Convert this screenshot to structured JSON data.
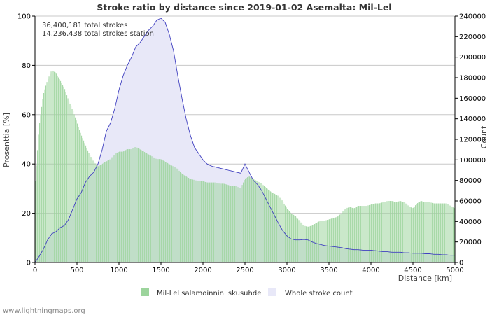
{
  "chart_data": {
    "type": "bar",
    "title": "Stroke ratio by distance since 2019-01-02 Asemalta: Mil-Lel",
    "xlabel": "Distance   [km]",
    "ylabel_left": "Prosenttia   [%]",
    "ylabel_right": "Count",
    "xlim": [
      0,
      5000
    ],
    "ylim_left": [
      0,
      100
    ],
    "ylim_right": [
      0,
      240000
    ],
    "x_ticks": [
      0,
      500,
      1000,
      1500,
      2000,
      2500,
      3000,
      3500,
      4000,
      4500,
      5000
    ],
    "y_left_ticks": [
      0,
      20,
      40,
      60,
      80,
      100
    ],
    "y_right_ticks": [
      0,
      20000,
      40000,
      60000,
      80000,
      100000,
      120000,
      140000,
      160000,
      180000,
      200000,
      220000,
      240000
    ],
    "grid": true,
    "annotations": [
      "36,400,181 total strokes",
      "14,236,438 total strokes station"
    ],
    "ratio_series": {
      "name": "Mil-Lel salamoinnin iskusuhde",
      "axis": "left",
      "color": "#9cd49c",
      "x": [
        0,
        50,
        100,
        150,
        200,
        250,
        300,
        350,
        400,
        450,
        500,
        550,
        600,
        650,
        700,
        750,
        800,
        850,
        900,
        950,
        1000,
        1050,
        1100,
        1150,
        1200,
        1250,
        1300,
        1350,
        1400,
        1450,
        1500,
        1550,
        1600,
        1650,
        1700,
        1750,
        1800,
        1850,
        1900,
        1950,
        2000,
        2050,
        2100,
        2150,
        2200,
        2250,
        2300,
        2350,
        2400,
        2450,
        2500,
        2550,
        2600,
        2650,
        2700,
        2750,
        2800,
        2850,
        2900,
        2950,
        3000,
        3050,
        3100,
        3150,
        3200,
        3250,
        3300,
        3350,
        3400,
        3450,
        3500,
        3550,
        3600,
        3650,
        3700,
        3750,
        3800,
        3850,
        3900,
        3950,
        4000,
        4050,
        4100,
        4150,
        4200,
        4250,
        4300,
        4350,
        4400,
        4450,
        4500,
        4550,
        4600,
        4650,
        4700,
        4750,
        4800,
        4850,
        4900,
        4950,
        5000
      ],
      "values": [
        30,
        55,
        68,
        74,
        78,
        77,
        74,
        71,
        66,
        62,
        57,
        52,
        48,
        44,
        41,
        39,
        40,
        41,
        42,
        44,
        45,
        45,
        46,
        46,
        47,
        46,
        45,
        44,
        43,
        42,
        42,
        41,
        40,
        39,
        38,
        36,
        35,
        34,
        33.5,
        33,
        33,
        32.5,
        32.5,
        32.5,
        32,
        32,
        31.5,
        31,
        31,
        30,
        34,
        35,
        34,
        33,
        32,
        30.5,
        29,
        28,
        27,
        25,
        22,
        20,
        19,
        17,
        15,
        14.5,
        15,
        16,
        17,
        17,
        17.5,
        18,
        18.5,
        20,
        22,
        22.5,
        22,
        23,
        23,
        23,
        23.5,
        24,
        24,
        24.5,
        25,
        25,
        24.5,
        25,
        24.5,
        23,
        22,
        24,
        25,
        24.5,
        24.5,
        24,
        24,
        24,
        24,
        23,
        22
      ]
    },
    "count_series": {
      "name": "Whole stroke count",
      "axis": "right",
      "color": "#e8e8f8",
      "line_color": "#4040c0",
      "x": [
        0,
        50,
        100,
        150,
        200,
        250,
        300,
        350,
        400,
        450,
        500,
        550,
        600,
        650,
        700,
        750,
        800,
        850,
        900,
        950,
        1000,
        1050,
        1100,
        1150,
        1200,
        1250,
        1300,
        1350,
        1400,
        1450,
        1500,
        1550,
        1600,
        1650,
        1700,
        1750,
        1800,
        1850,
        1900,
        1950,
        2000,
        2050,
        2100,
        2150,
        2200,
        2250,
        2300,
        2350,
        2400,
        2450,
        2500,
        2550,
        2600,
        2650,
        2700,
        2750,
        2800,
        2850,
        2900,
        2950,
        3000,
        3050,
        3100,
        3150,
        3200,
        3250,
        3300,
        3350,
        3400,
        3450,
        3500,
        3550,
        3600,
        3650,
        3700,
        3750,
        3800,
        3850,
        3900,
        3950,
        4000,
        4050,
        4100,
        4150,
        4200,
        4250,
        4300,
        4350,
        4400,
        4450,
        4500,
        4550,
        4600,
        4650,
        4700,
        4750,
        4800,
        4850,
        4900,
        4950,
        5000
      ],
      "values": [
        0,
        6000,
        13000,
        22000,
        28000,
        30000,
        34000,
        36000,
        42000,
        52000,
        62000,
        68000,
        78000,
        84000,
        88000,
        96000,
        110000,
        128000,
        136000,
        150000,
        168000,
        182000,
        192000,
        200000,
        210000,
        214000,
        220000,
        226000,
        230000,
        236000,
        238000,
        234000,
        222000,
        206000,
        182000,
        160000,
        140000,
        124000,
        112000,
        106000,
        100000,
        96000,
        94000,
        93000,
        92000,
        91000,
        90000,
        89000,
        88000,
        87000,
        96000,
        88000,
        80000,
        76000,
        70000,
        62000,
        54000,
        46000,
        38000,
        31000,
        26000,
        23000,
        22000,
        22000,
        22500,
        22000,
        20000,
        18500,
        17500,
        16500,
        16000,
        15500,
        15000,
        14500,
        13500,
        13000,
        12500,
        12500,
        12000,
        12000,
        12000,
        11500,
        11000,
        10500,
        10500,
        10000,
        10000,
        10000,
        9500,
        9500,
        9000,
        9000,
        9000,
        8500,
        8500,
        8000,
        8000,
        7500,
        7500,
        7000,
        7000
      ]
    }
  },
  "credit": "www.lightningmaps.org"
}
